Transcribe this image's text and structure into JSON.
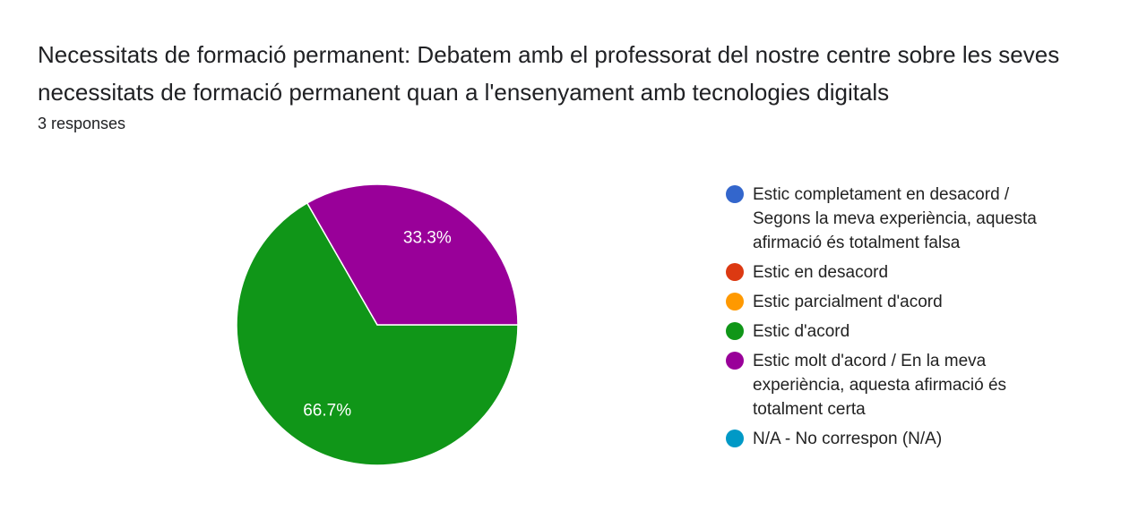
{
  "chart_data": {
    "type": "pie",
    "title": "Necessitats de formació permanent: Debatem amb el professorat del nostre centre sobre les seves necessitats de formació permanent quan a l'ensenyament amb tecnologies digitals",
    "subtitle": "3 responses",
    "categories": [
      "Estic completament en desacord / Segons la meva experiència, aquesta afirmació és totalment falsa",
      "Estic en desacord",
      "Estic parcialment d'acord",
      "Estic d'acord",
      "Estic molt d'acord / En la meva experiència, aquesta afirmació és totalment certa",
      "N/A - No correspon (N/A)"
    ],
    "values": [
      0,
      0,
      0,
      66.7,
      33.3,
      0
    ],
    "value_labels": [
      null,
      null,
      null,
      "66.7%",
      "33.3%",
      null
    ],
    "colors": [
      "#3366cc",
      "#dc3912",
      "#ff9900",
      "#109618",
      "#990099",
      "#0099c6"
    ],
    "legend": "right"
  }
}
